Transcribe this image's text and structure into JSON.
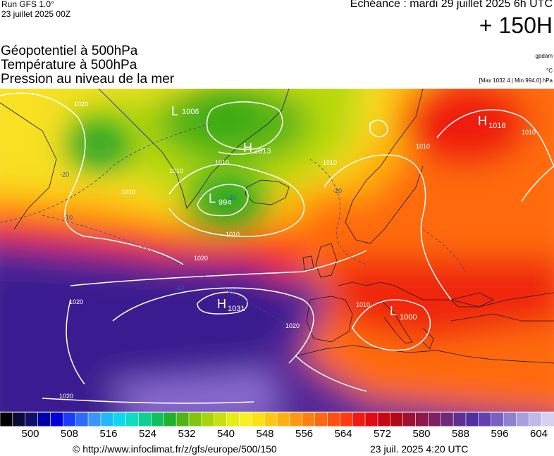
{
  "header": {
    "run_label": "Run GFS 1.0°",
    "run_date": "23 juillet 2025 00Z",
    "echeance": "Echéance : mardi 29 juillet 2025 6h UTC",
    "lead_time": "+ 150H"
  },
  "titles": {
    "line1": "Géopotentiel à 500hPa",
    "line2": "Température à 500hPa",
    "line3": "Pression au niveau de la mer"
  },
  "units": {
    "geopotential": "gpdam",
    "temperature": "°C",
    "pressure_range": "[Max 1032.4 | Min 994.0] hPa"
  },
  "map": {
    "pressure_centers": [
      {
        "type": "L",
        "value": "1006"
      },
      {
        "type": "H",
        "value": "1013"
      },
      {
        "type": "L",
        "value": "994"
      },
      {
        "type": "H",
        "value": "1018"
      },
      {
        "type": "H",
        "value": "1031"
      },
      {
        "type": "L",
        "value": "1000"
      }
    ],
    "isobar_labels": [
      "1020",
      "1010",
      "1010",
      "1010",
      "1010",
      "1010",
      "1020",
      "1020",
      "1020",
      "1020",
      "1010",
      "1010",
      "1010"
    ],
    "isotherm_labels": [
      "-20",
      "-20",
      "-10",
      "-20",
      "-10",
      "-10"
    ]
  },
  "colorbar": {
    "labels": [
      "500",
      "508",
      "516",
      "524",
      "532",
      "540",
      "548",
      "556",
      "564",
      "572",
      "580",
      "588",
      "596",
      "604"
    ],
    "colors": [
      "#000000",
      "#0a0a3a",
      "#10106a",
      "#0000a8",
      "#0000d8",
      "#1a3cff",
      "#2f6bff",
      "#3a96ff",
      "#20b8ff",
      "#10d6f0",
      "#10dcc0",
      "#10d090",
      "#10c060",
      "#20b030",
      "#50b418",
      "#80c40c",
      "#a8d40a",
      "#c8e010",
      "#e8ee10",
      "#f8f020",
      "#ffe010",
      "#ffc810",
      "#ffb010",
      "#ff9810",
      "#ff8010",
      "#ff6810",
      "#ff5010",
      "#ff3a10",
      "#f01a10",
      "#e00a10",
      "#c80810",
      "#b00a18",
      "#a01030",
      "#901848",
      "#802060",
      "#702878",
      "#603090",
      "#5030a0",
      "#6040b0",
      "#7a60c0",
      "#9080d0",
      "#a8a0dc",
      "#c0b8e8",
      "#d8d0f0"
    ]
  },
  "footer": {
    "source": "© http://www.infoclimat.fr/z/gfs/europe/500/150",
    "generated": "23 juil. 2025  4:20 UTC"
  }
}
